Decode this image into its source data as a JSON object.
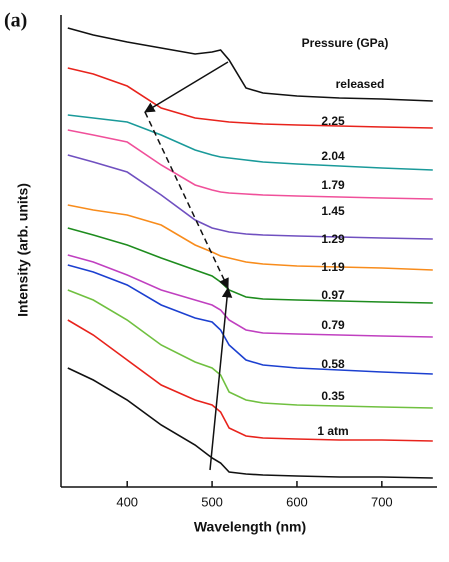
{
  "chart_data": {
    "type": "line",
    "panel_label": "(a)",
    "xlabel": "Wavelength (nm)",
    "ylabel": "Intensity (arb. units)",
    "legend_title": "Pressure (GPa)",
    "x": [
      330,
      360,
      400,
      440,
      480,
      500,
      510,
      520,
      540,
      560,
      600,
      650,
      700,
      760
    ],
    "xlim": [
      322,
      765
    ],
    "xticks": [
      400,
      500,
      600,
      700
    ],
    "ylim": [
      0,
      472
    ],
    "series": [
      {
        "name": "released",
        "color": "#111111",
        "values": [
          459,
          452,
          445,
          439,
          433,
          435,
          437,
          427,
          399,
          394,
          391,
          389,
          388,
          386
        ]
      },
      {
        "name": "2.25",
        "color": "#e8231c",
        "values": [
          419,
          413,
          401,
          379,
          369,
          367,
          366,
          365,
          364,
          363,
          362,
          361,
          360,
          359
        ]
      },
      {
        "name": "2.04",
        "color": "#1a9a9a",
        "values": [
          372,
          369,
          365,
          352,
          337,
          332,
          330,
          329,
          327,
          325,
          323,
          321,
          319,
          317
        ]
      },
      {
        "name": "1.79",
        "color": "#f0509a",
        "values": [
          357,
          352,
          345,
          322,
          302,
          297,
          295,
          294,
          293,
          292,
          291,
          290,
          289,
          288
        ]
      },
      {
        "name": "1.45",
        "color": "#7050c0",
        "values": [
          332,
          325,
          315,
          292,
          267,
          259,
          257,
          255,
          253,
          252,
          251,
          250,
          249,
          248
        ]
      },
      {
        "name": "1.29",
        "color": "#f88c1c",
        "values": [
          282,
          277,
          272,
          262,
          242,
          235,
          231,
          229,
          225,
          223,
          221,
          220,
          219,
          217
        ]
      },
      {
        "name": "1.19",
        "color": "#1e8c1e",
        "values": [
          259,
          252,
          242,
          229,
          217,
          211,
          205,
          197,
          190,
          188,
          187,
          186,
          185,
          184
        ]
      },
      {
        "name": "0.97",
        "color": "#c040c0",
        "values": [
          232,
          225,
          212,
          197,
          187,
          182,
          177,
          167,
          157,
          154,
          153,
          152,
          151,
          150
        ]
      },
      {
        "name": "0.79",
        "color": "#1c40d0",
        "values": [
          222,
          215,
          202,
          182,
          169,
          165,
          157,
          142,
          127,
          122,
          119,
          117,
          115,
          113
        ]
      },
      {
        "name": "0.58",
        "color": "#70c040",
        "values": [
          197,
          187,
          167,
          142,
          125,
          119,
          112,
          95,
          87,
          84,
          82,
          81,
          80,
          79
        ]
      },
      {
        "name": "0.35",
        "color": "#e8231c",
        "values": [
          167,
          152,
          127,
          102,
          87,
          82,
          75,
          59,
          51,
          49,
          48,
          47,
          47,
          46
        ]
      },
      {
        "name": "1 atm",
        "color": "#111111",
        "values": [
          119,
          107,
          87,
          62,
          42,
          29,
          24,
          15,
          13,
          12,
          11,
          10,
          10,
          9
        ]
      }
    ]
  }
}
